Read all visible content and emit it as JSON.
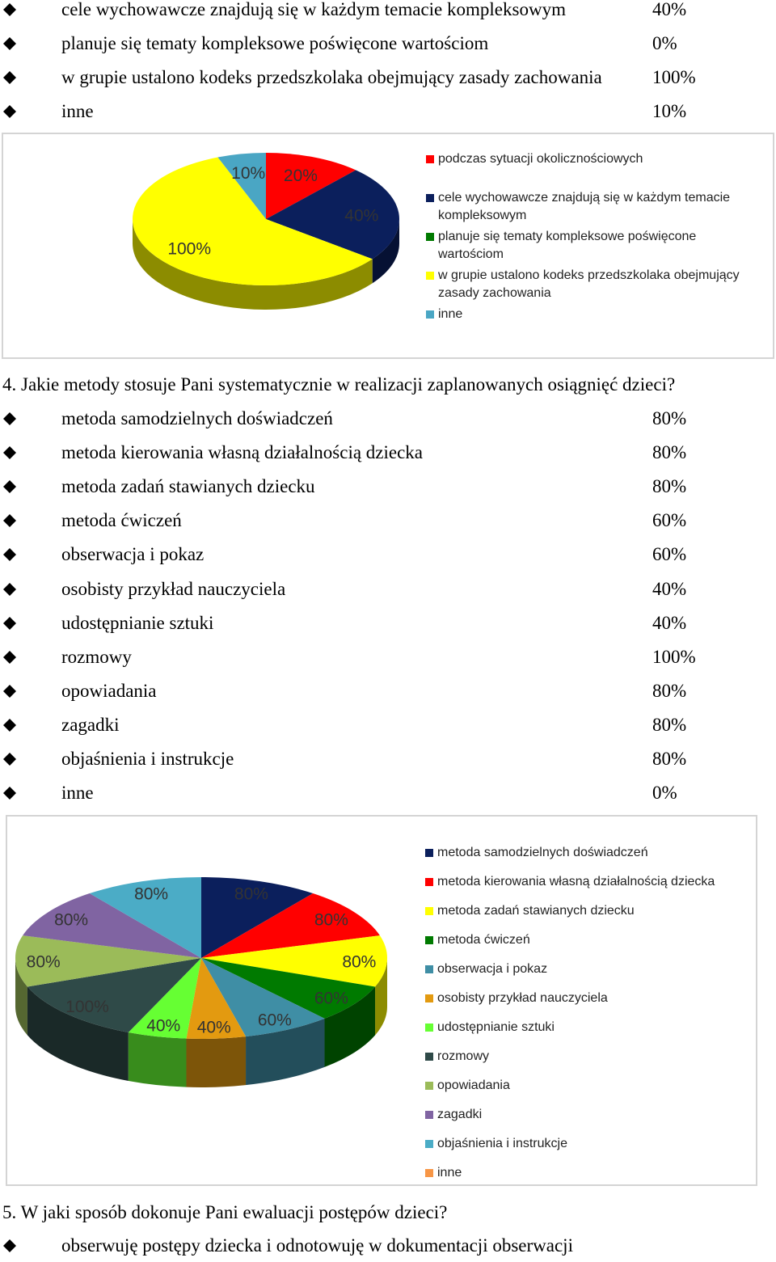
{
  "section3": {
    "items": [
      {
        "label": "cele wychowawcze znajdują się w każdym temacie kompleksowym",
        "value": "40%"
      },
      {
        "label": "planuje się tematy kompleksowe poświęcone wartościom",
        "value": "0%"
      },
      {
        "label": "w grupie ustalono kodeks przedszkolaka obejmujący zasady zachowania",
        "value": "100%"
      },
      {
        "label": "inne",
        "value": "10%"
      }
    ]
  },
  "question4": "4. Jakie metody stosuje Pani systematycznie w realizacji zaplanowanych osiągnięć dzieci?",
  "section4": {
    "items": [
      {
        "label": "metoda samodzielnych doświadczeń",
        "value": "80%"
      },
      {
        "label": "metoda kierowania własną działalnością dziecka",
        "value": "80%"
      },
      {
        "label": "metoda zadań stawianych dziecku",
        "value": "80%"
      },
      {
        "label": "metoda ćwiczeń",
        "value": "60%"
      },
      {
        "label": "obserwacja i pokaz",
        "value": "60%"
      },
      {
        "label": "osobisty przykład nauczyciela",
        "value": "40%"
      },
      {
        "label": "udostępnianie sztuki",
        "value": "40%"
      },
      {
        "label": "rozmowy",
        "value": "100%"
      },
      {
        "label": "opowiadania",
        "value": "80%"
      },
      {
        "label": "zagadki",
        "value": "80%"
      },
      {
        "label": "objaśnienia i instrukcje",
        "value": "80%"
      },
      {
        "label": "inne",
        "value": "0%"
      }
    ]
  },
  "question5": "5. W jaki sposób dokonuje Pani ewaluacji postępów dzieci?",
  "section5": {
    "items": [
      {
        "label": "obserwuję postępy dziecka i odnotowuję w dokumentacji obserwacji",
        "value": ""
      }
    ]
  },
  "chart_data": [
    {
      "type": "pie",
      "style": "3d",
      "legend_position": "right",
      "series": [
        {
          "name": "podczas sytuacji okolicznościowych",
          "value": 20,
          "label": "20%",
          "color": "#ff0000"
        },
        {
          "name": "cele wychowawcze znajdują się w każdym temacie kompleksowym",
          "value": 40,
          "label": "40%",
          "color": "#0b1f5c"
        },
        {
          "name": "planuje się tematy kompleksowe poświęcone wartościom",
          "value": 0,
          "label": "",
          "color": "#007a00"
        },
        {
          "name": "w grupie ustalono kodeks przedszkolaka obejmujący zasady zachowania",
          "value": 100,
          "label": "100%",
          "color": "#ffff00"
        },
        {
          "name": "inne",
          "value": 10,
          "label": "10%",
          "color": "#4aa6c4"
        }
      ]
    },
    {
      "type": "pie",
      "style": "3d",
      "legend_position": "right",
      "series": [
        {
          "name": "metoda samodzielnych doświadczeń",
          "value": 80,
          "label": "80%",
          "color": "#0b1f5c"
        },
        {
          "name": "metoda kierowania własną działalnością dziecka",
          "value": 80,
          "label": "80%",
          "color": "#ff0000"
        },
        {
          "name": "metoda zadań stawianych dziecku",
          "value": 80,
          "label": "80%",
          "color": "#ffff00"
        },
        {
          "name": "metoda ćwiczeń",
          "value": 60,
          "label": "60%",
          "color": "#007a00"
        },
        {
          "name": "obserwacja i pokaz",
          "value": 60,
          "label": "60%",
          "color": "#3f8ea5"
        },
        {
          "name": "osobisty przykład nauczyciela",
          "value": 40,
          "label": "40%",
          "color": "#e39a10"
        },
        {
          "name": "udostępnianie sztuki",
          "value": 40,
          "label": "40%",
          "color": "#66ff33"
        },
        {
          "name": "rozmowy",
          "value": 100,
          "label": "100%",
          "color": "#2f4a48"
        },
        {
          "name": "opowiadania",
          "value": 80,
          "label": "80%",
          "color": "#9bbb59"
        },
        {
          "name": "zagadki",
          "value": 80,
          "label": "80%",
          "color": "#8064a2"
        },
        {
          "name": "objaśnienia i instrukcje",
          "value": 80,
          "label": "80%",
          "color": "#4bacc6"
        },
        {
          "name": "inne",
          "value": 0,
          "label": "",
          "color": "#f79646"
        }
      ]
    }
  ]
}
